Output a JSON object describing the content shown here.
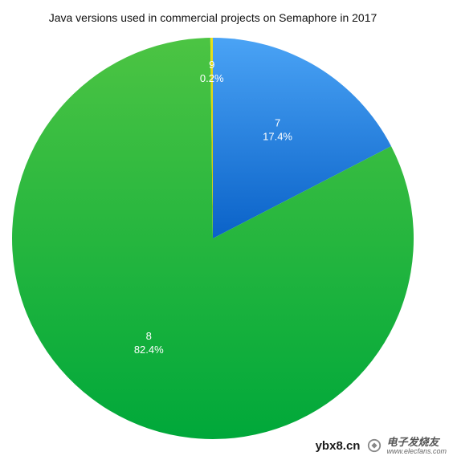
{
  "chart_data": {
    "type": "pie",
    "title": "Java versions used in commercial projects on Semaphore in 2017",
    "start": "12-o'clock",
    "direction": "clockwise",
    "slices": [
      {
        "name": "7",
        "value": 17.4,
        "label": "17.4%",
        "colors": [
          "#4aa3f5",
          "#0a62c8"
        ]
      },
      {
        "name": "8",
        "value": 82.4,
        "label": "82.4%",
        "colors": [
          "#4cc443",
          "#00a83a"
        ]
      },
      {
        "name": "9",
        "value": 0.2,
        "label": "0.2%",
        "colors": [
          "#e8e01c",
          "#c9c200"
        ]
      }
    ]
  },
  "watermark": {
    "text": "ybx8.cn",
    "brand_cn": "电子发烧友",
    "brand_en": "www.elecfans.com"
  }
}
